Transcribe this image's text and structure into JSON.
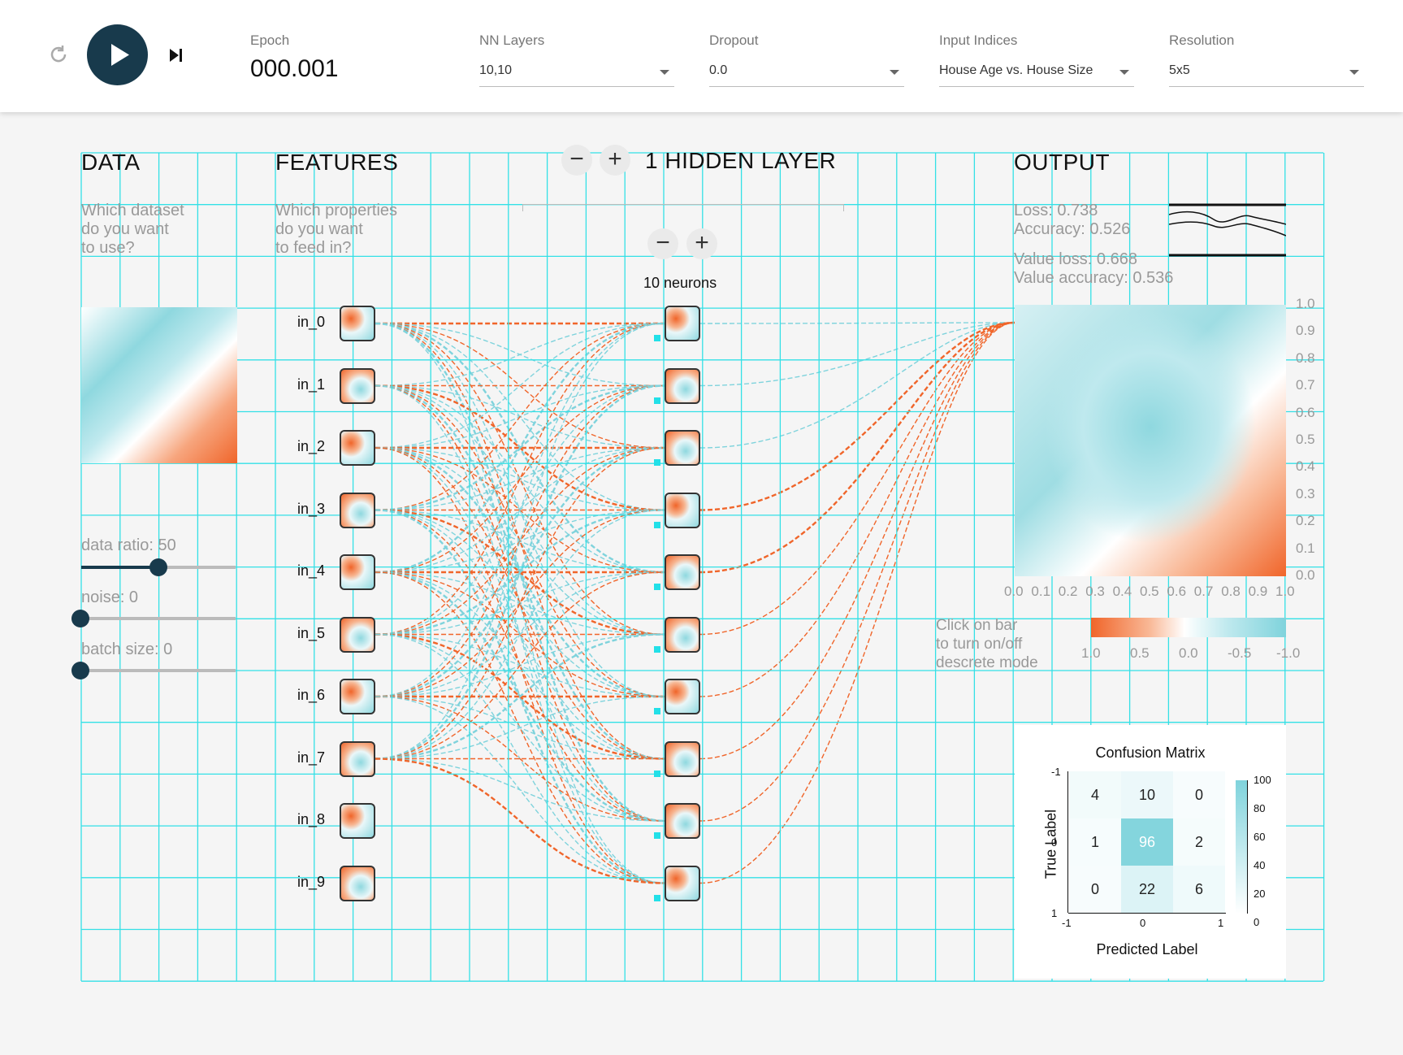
{
  "toolbar": {
    "epoch_label": "Epoch",
    "epoch_value": "000.001",
    "nn_layers_label": "NN Layers",
    "nn_layers_value": "10,10",
    "dropout_label": "Dropout",
    "dropout_value": "0.0",
    "input_indices_label": "Input Indices",
    "input_indices_value": "House Age vs. House Size",
    "resolution_label": "Resolution",
    "resolution_value": "5x5"
  },
  "data_section": {
    "heading": "DATA",
    "desc": [
      "Which dataset",
      "do you want",
      "to use?"
    ],
    "sliders": [
      {
        "label": "data ratio: 50",
        "value": 50,
        "max": 100
      },
      {
        "label": "noise: 0",
        "value": 0,
        "max": 100
      },
      {
        "label": "batch size: 0",
        "value": 0,
        "max": 100
      }
    ]
  },
  "features_section": {
    "heading": "FEATURES",
    "desc": [
      "Which properties",
      "do you want",
      "to feed in?"
    ],
    "inputs": [
      "in_0",
      "in_1",
      "in_2",
      "in_3",
      "in_4",
      "in_5",
      "in_6",
      "in_7",
      "in_8",
      "in_9"
    ]
  },
  "hidden_section": {
    "heading": "1 HIDDEN LAYER",
    "add_layer": "+",
    "remove_layer": "−",
    "add_neuron": "+",
    "remove_neuron": "−",
    "neurons_label": "10 neurons"
  },
  "output_section": {
    "heading": "OUTPUT",
    "loss": "Loss: 0.738",
    "accuracy": "Accuracy: 0.526",
    "value_loss": "Value loss: 0.668",
    "value_accuracy": "Value accuracy: 0.536",
    "y_ticks": [
      "1.0",
      "0.9",
      "0.8",
      "0.7",
      "0.6",
      "0.5",
      "0.4",
      "0.3",
      "0.2",
      "0.1",
      "0.0"
    ],
    "x_ticks": [
      "0.0",
      "0.1",
      "0.2",
      "0.3",
      "0.4",
      "0.5",
      "0.6",
      "0.7",
      "0.8",
      "0.9",
      "1.0"
    ],
    "discrete_hint": [
      "Click on bar",
      "to turn on/off",
      "descrete mode"
    ],
    "colorbar_ticks": [
      "1.0",
      "0.5",
      "0.0",
      "-0.5",
      "-1.0"
    ]
  },
  "confusion_matrix": {
    "title": "Confusion Matrix",
    "xlabel": "Predicted Label",
    "ylabel": "True Label",
    "x_ticks": [
      "-1",
      "0",
      "1"
    ],
    "y_ticks": [
      "-1",
      "0",
      "1"
    ],
    "values": [
      [
        4,
        10,
        0
      ],
      [
        1,
        96,
        2
      ],
      [
        0,
        22,
        6
      ]
    ],
    "colorbar_ticks": [
      "100",
      "80",
      "60",
      "40",
      "20",
      "0"
    ]
  },
  "colors": {
    "positive": "#f0652a",
    "negative": "#7fd3dc",
    "dark": "#183a4c",
    "grid": "#33e0e6"
  },
  "icons": {
    "reset": "reset-icon",
    "play": "play-icon",
    "step": "step-icon"
  }
}
